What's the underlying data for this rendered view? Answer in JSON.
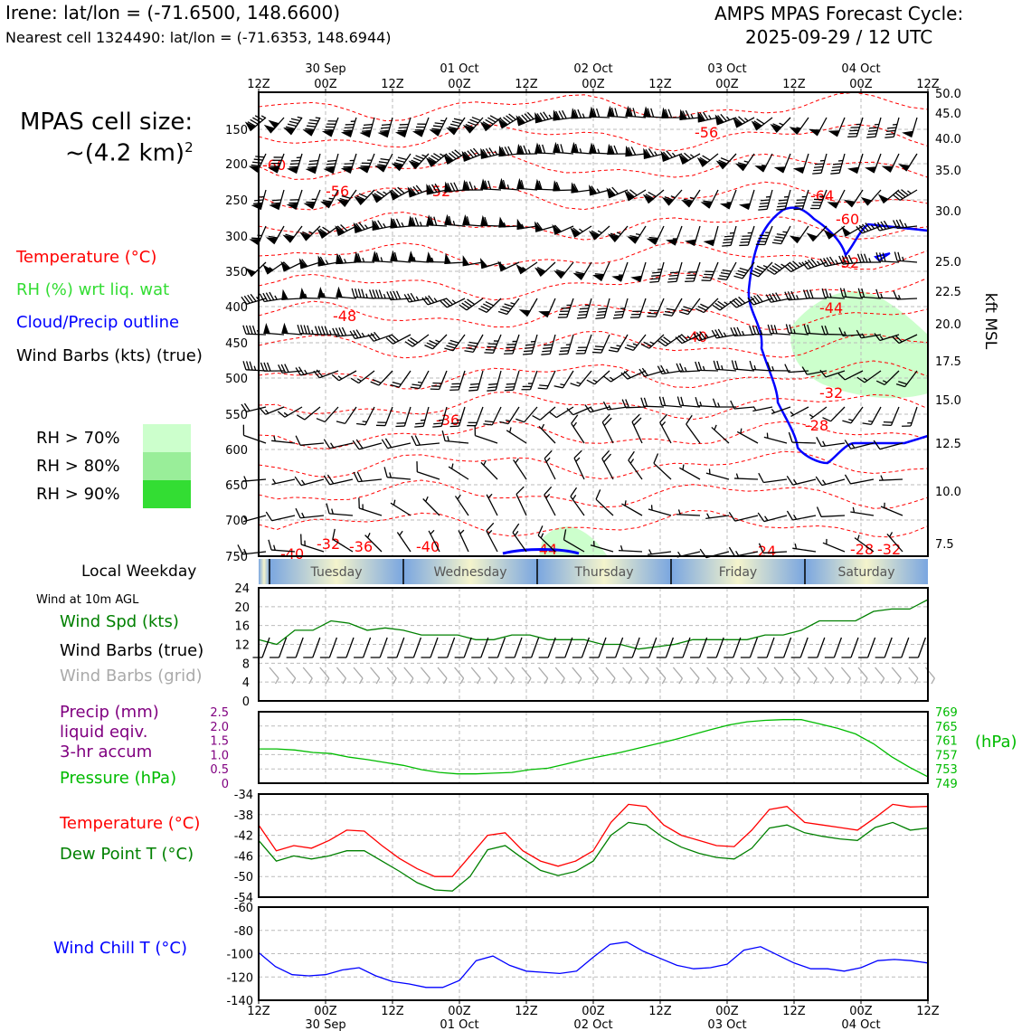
{
  "header": {
    "station": "Irene: lat/lon = (-71.6500, 148.6600)",
    "cell": "Nearest cell 1324490: lat/lon = (-71.6353, 148.6944)",
    "cycle_line1": "AMPS MPAS Forecast Cycle:",
    "cycle_line2": "2025-09-29 / 12 UTC",
    "cell_size_label": "MPAS cell size:",
    "cell_size_value": "~(4.2 km)",
    "cell_size_exp": "2"
  },
  "colors": {
    "temperature": "#ff0000",
    "rh_label": "#33dd33",
    "cloud": "#0000ff",
    "wind_grid": "#aaaaaa",
    "wind_spd": "#008000",
    "precip": "#800080",
    "pressure": "#00bb00",
    "dewpoint": "#008000",
    "windchill": "#0000ff",
    "rh70": "#ccffcc",
    "rh80": "#99ee99",
    "rh90": "#33dd33"
  },
  "legend": {
    "temperature": "Temperature (°C)",
    "rh": "RH (%) wrt liq. wat",
    "cloud": "Cloud/Precip outline",
    "wind": "Wind Barbs (kts) (true)",
    "rh70": "RH > 70%",
    "rh80": "RH > 80%",
    "rh90": "RH > 90%",
    "weekday_label": "Local Weekday",
    "wind10m": "Wind at 10m AGL",
    "wind_spd": "Wind Spd (kts)",
    "wind_true": "Wind Barbs (true)",
    "wind_grid": "Wind Barbs (grid)",
    "precip1": "Precip (mm)",
    "precip2": "liquid eqiv.",
    "precip3": "3-hr accum",
    "pressure": "Pressure (hPa)",
    "temp_sfc": "Temperature (°C)",
    "dewpoint": "Dew Point T (°C)",
    "windchill": "Wind Chill T (°C)"
  },
  "chart_data": [
    {
      "type": "line",
      "panel": "time-height",
      "x_top_ticks": [
        "12Z",
        "00Z",
        "12Z",
        "00Z",
        "12Z",
        "00Z",
        "12Z",
        "00Z",
        "12Z",
        "00Z",
        "12Z"
      ],
      "x_top_dates": [
        "30 Sep",
        "01 Oct",
        "02 Oct",
        "03 Oct",
        "04 Oct"
      ],
      "y_left_ticks": [
        "150",
        "200",
        "250",
        "300",
        "350",
        "400",
        "450",
        "500",
        "550",
        "600",
        "650",
        "700",
        "750"
      ],
      "y_right_ticks": [
        "50.0",
        "45.0",
        "40.0",
        "35.0",
        "30.0",
        "25.0",
        "22.5",
        "20.0",
        "17.5",
        "15.0",
        "12.5",
        "10.0",
        "7.5"
      ],
      "y_right_label": "kft MSL",
      "temperature_labels": [
        "-60",
        "-56",
        "-52",
        "-56",
        "-64",
        "-60",
        "-52",
        "-48",
        "-44",
        "-40",
        "-36",
        "-32",
        "-28",
        "-32",
        "-36",
        "-40",
        "-44",
        "-40",
        "-24",
        "-28",
        "-32"
      ]
    },
    {
      "type": "table",
      "panel": "weekday",
      "days": [
        "Tuesday",
        "Wednesday",
        "Thursday",
        "Friday",
        "Saturday"
      ]
    },
    {
      "type": "line",
      "panel": "wind10m",
      "ylim": [
        0,
        24
      ],
      "yticks": [
        "0",
        "4",
        "8",
        "12",
        "16",
        "20",
        "24"
      ],
      "series": [
        {
          "name": "Wind Spd (kts)",
          "values": [
            13,
            12,
            15,
            15,
            17,
            16.5,
            15,
            15.5,
            15,
            14,
            14,
            14,
            13,
            13,
            14,
            14,
            13,
            13,
            13,
            12,
            12,
            11,
            11.5,
            12,
            13,
            13,
            13,
            13,
            14,
            14,
            15,
            17,
            17,
            17,
            19,
            19.5,
            19.5,
            21.5
          ]
        }
      ]
    },
    {
      "type": "line",
      "panel": "pressure",
      "yticks_left": [
        "0",
        "0.5",
        "1.0",
        "1.5",
        "2.0",
        "2.5"
      ],
      "yticks_right": [
        "749",
        "753",
        "757",
        "761",
        "765",
        "769"
      ],
      "ylim_right": [
        749,
        769
      ],
      "right_unit": "(hPa)",
      "series": [
        {
          "name": "Pressure (hPa)",
          "values": [
            758.6,
            758.6,
            758.3,
            757.6,
            757.3,
            756.3,
            755.6,
            754.8,
            754.0,
            752.8,
            752.0,
            751.6,
            751.6,
            751.8,
            752.0,
            752.8,
            753.2,
            754.4,
            755.6,
            756.6,
            757.6,
            758.8,
            760.0,
            761.2,
            762.6,
            764.0,
            765.3,
            766.2,
            766.6,
            766.8,
            766.8,
            765.6,
            764.4,
            762.8,
            760.0,
            756.4,
            753.4,
            750.8
          ]
        }
      ]
    },
    {
      "type": "line",
      "panel": "temperature",
      "ylim": [
        -54,
        -34
      ],
      "yticks": [
        "-54",
        "-50",
        "-46",
        "-42",
        "-38",
        "-34"
      ],
      "series": [
        {
          "name": "Temperature (°C)",
          "values": [
            -40,
            -45,
            -44,
            -44.5,
            -43,
            -41,
            -41.2,
            -44,
            -46.5,
            -48.5,
            -50,
            -50,
            -46,
            -42,
            -41.5,
            -45,
            -47,
            -48,
            -47,
            -45,
            -39.5,
            -36,
            -36.4,
            -40,
            -42,
            -43,
            -44,
            -44.2,
            -41,
            -37,
            -36.4,
            -39.5,
            -40,
            -40.5,
            -41,
            -38.6,
            -36,
            -36.5,
            -36.4
          ],
          "x_count": 39
        },
        {
          "name": "Dew Point T (°C)",
          "values": [
            -43,
            -47,
            -46,
            -46.6,
            -46,
            -45,
            -45,
            -47,
            -49,
            -51.2,
            -52.6,
            -52.8,
            -50,
            -44.8,
            -44,
            -46.5,
            -48.8,
            -49.8,
            -49,
            -47,
            -42,
            -39.5,
            -40,
            -42.5,
            -44.3,
            -45.5,
            -46.3,
            -46.6,
            -44.5,
            -40.6,
            -40,
            -41.5,
            -42.2,
            -42.7,
            -43,
            -40.5,
            -39.5,
            -41,
            -40.6
          ],
          "x_count": 39
        }
      ]
    },
    {
      "type": "line",
      "panel": "windchill",
      "ylim": [
        -140,
        -60
      ],
      "yticks": [
        "-140",
        "-120",
        "-100",
        "-80",
        "-60"
      ],
      "x_bottom_ticks": [
        "12Z",
        "00Z",
        "12Z",
        "00Z",
        "12Z",
        "00Z",
        "12Z",
        "00Z",
        "12Z",
        "00Z",
        "12Z"
      ],
      "x_bottom_dates": [
        "30 Sep",
        "01 Oct",
        "02 Oct",
        "03 Oct",
        "04 Oct"
      ],
      "series": [
        {
          "name": "Wind Chill T (°C)",
          "values": [
            -99,
            -111,
            -118,
            -119,
            -118,
            -114,
            -112,
            -119,
            -124,
            -126,
            -129,
            -129,
            -123,
            -106,
            -102,
            -110,
            -115,
            -116,
            -117,
            -115,
            -103,
            -92,
            -90,
            -98,
            -104,
            -110,
            -113,
            -112,
            -109,
            -97,
            -94,
            -101,
            -108,
            -113,
            -113,
            -115,
            -112,
            -106,
            -105,
            -106,
            -108
          ]
        }
      ]
    }
  ]
}
